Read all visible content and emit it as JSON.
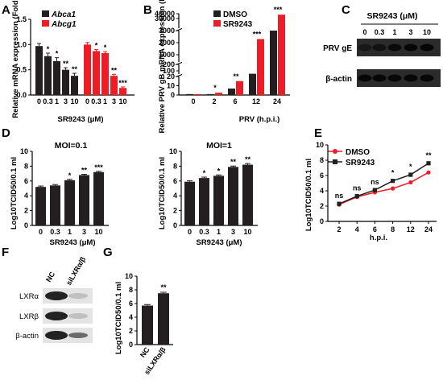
{
  "panels": {
    "A": "A",
    "B": "B",
    "C": "C",
    "D": "D",
    "E": "E",
    "F": "F",
    "G": "G"
  },
  "colors": {
    "black": "#231f20",
    "red": "#ee1c25",
    "gridgray": "#333333"
  },
  "chart_data": [
    {
      "id": "A",
      "type": "bar",
      "ylabel": "Relative mRNA expression (Fold)",
      "xlabel": "SR9243 (μM)",
      "categories": [
        "0",
        "0.3",
        "1",
        "3",
        "10"
      ],
      "ylim": [
        0,
        1.5
      ],
      "yticks": [
        "0.0",
        "0.5",
        "1.0",
        "1.5"
      ],
      "series": [
        {
          "name": "Abca1",
          "values": [
            0.97,
            0.77,
            0.67,
            0.5,
            0.38
          ],
          "errors": [
            0.05,
            0.06,
            0.07,
            0.04,
            0.05
          ],
          "sig": [
            "",
            "*",
            "*",
            "**",
            "**"
          ]
        },
        {
          "name": "Abcg1",
          "values": [
            1.0,
            0.87,
            0.83,
            0.38,
            0.14
          ],
          "errors": [
            0.04,
            0.03,
            0.03,
            0.03,
            0.02
          ],
          "sig": [
            "",
            "*",
            "*",
            "**",
            "***"
          ]
        }
      ]
    },
    {
      "id": "B",
      "type": "bar",
      "ylabel": "Relative PRV gB mRNA expression (Fold)",
      "xlabel": "PRV (h.p.i.)",
      "categories": [
        "0",
        "2",
        "6",
        "12",
        "24"
      ],
      "axis_breaks": true,
      "yticks_segments": [
        [
          "0",
          "10",
          "20"
        ],
        [
          "100",
          "200"
        ],
        [
          "1000",
          "2000",
          "3000"
        ],
        [
          "30000",
          "40000"
        ]
      ],
      "series": [
        {
          "name": "DMSO",
          "values": [
            1,
            1,
            7,
            55,
            3000
          ]
        },
        {
          "name": "SR9243",
          "values": [
            1,
            2.5,
            15,
            2300,
            38000
          ]
        }
      ],
      "sig": [
        "",
        "*",
        "**",
        "***",
        "***"
      ]
    },
    {
      "id": "D1",
      "type": "bar",
      "title": "MOI=0.1",
      "ylabel": "Log10TCID50/0.1 ml",
      "xlabel": "SR9243 (μM)",
      "categories": [
        "0",
        "0.3",
        "1",
        "3",
        "10"
      ],
      "ylim": [
        0,
        10
      ],
      "yticks": [
        "0",
        "2",
        "4",
        "6",
        "8",
        "10"
      ],
      "values": [
        5.2,
        5.4,
        6.1,
        6.8,
        7.2
      ],
      "errors": [
        0.12,
        0.12,
        0.12,
        0.1,
        0.1
      ],
      "sig": [
        "",
        "",
        "*",
        "**",
        "***"
      ]
    },
    {
      "id": "D2",
      "type": "bar",
      "title": "MOI=1",
      "ylabel": "Log10TCID50/0.1 ml",
      "xlabel": "SR9243 (μM)",
      "categories": [
        "0",
        "0.3",
        "1",
        "3",
        "10"
      ],
      "ylim": [
        0,
        10
      ],
      "yticks": [
        "0",
        "2",
        "4",
        "6",
        "8",
        "10"
      ],
      "values": [
        5.9,
        6.4,
        6.7,
        7.9,
        8.2
      ],
      "errors": [
        0.12,
        0.12,
        0.12,
        0.12,
        0.15
      ],
      "sig": [
        "",
        "*",
        "*",
        "**",
        "**"
      ]
    },
    {
      "id": "E",
      "type": "line",
      "ylabel": "Log10TCID50/0.1 ml",
      "xlabel": "h.p.i.",
      "categories": [
        "2",
        "4",
        "6",
        "8",
        "12",
        "24"
      ],
      "ylim": [
        0,
        10
      ],
      "yticks": [
        "0",
        "2",
        "4",
        "6",
        "8",
        "10"
      ],
      "series": [
        {
          "name": "DMSO",
          "values": [
            2.2,
            3.2,
            3.8,
            4.3,
            5.1,
            6.4
          ]
        },
        {
          "name": "SR9243",
          "values": [
            2.3,
            3.3,
            4.1,
            5.3,
            6.1,
            7.6
          ]
        }
      ],
      "sig": [
        "ns",
        "ns",
        "ns",
        "*",
        "*",
        "**"
      ]
    },
    {
      "id": "G",
      "type": "bar",
      "ylabel": "Log10TCID50/0.1 ml",
      "categories": [
        "NC",
        "siLXRα/β"
      ],
      "ylim": [
        0,
        10
      ],
      "yticks": [
        "0",
        "2",
        "4",
        "6",
        "8",
        "10"
      ],
      "values": [
        5.7,
        7.5
      ],
      "errors": [
        0.15,
        0.15
      ],
      "sig": [
        "",
        "**"
      ]
    }
  ],
  "blots": {
    "C": {
      "title": "SR9243 (μM)",
      "lanes": [
        "0",
        "0.3",
        "1",
        "3",
        "10"
      ],
      "rows": [
        "PRV gE",
        "β-actin"
      ]
    },
    "F": {
      "lanes": [
        "NC",
        "siLXRα/β"
      ],
      "rows": [
        "LXRα",
        "LXRβ",
        "β-actin"
      ]
    }
  }
}
